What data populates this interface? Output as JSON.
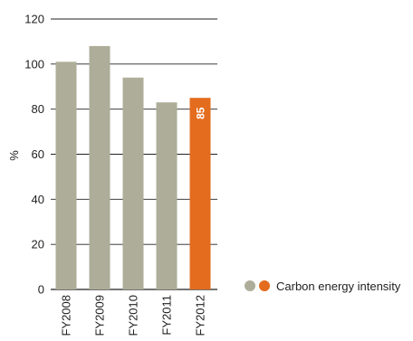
{
  "chart_data": {
    "type": "bar",
    "categories": [
      "FY2008",
      "FY2009",
      "FY2010",
      "FY2011",
      "FY2012"
    ],
    "values": [
      101,
      108,
      94,
      83,
      85
    ],
    "ylabel": "%",
    "ylim": [
      0,
      120
    ],
    "yticks": [
      0,
      20,
      40,
      60,
      80,
      100,
      120
    ],
    "grid": true,
    "bar_colors": [
      "#adad99",
      "#adad99",
      "#adad99",
      "#adad99",
      "#e36c1e"
    ],
    "data_labels": [
      {
        "category": "FY2012",
        "text": "85"
      }
    ],
    "legend": {
      "placement": "bottom-right",
      "label": "Carbon energy intensity",
      "swatch_colors": [
        "#adad99",
        "#e36c1e"
      ]
    }
  }
}
